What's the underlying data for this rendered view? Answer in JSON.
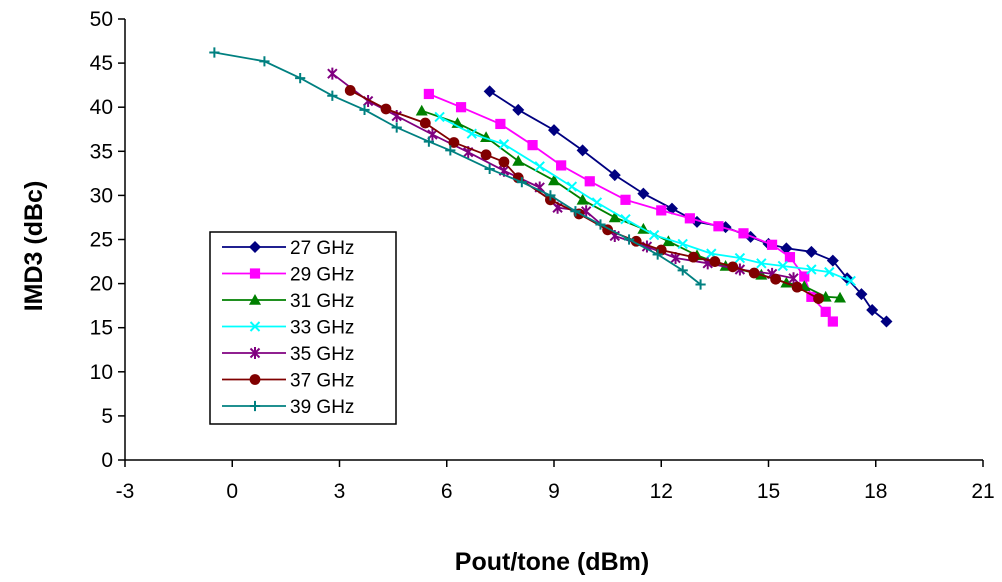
{
  "chart_data": {
    "type": "line",
    "xlabel": "Pout/tone (dBm)",
    "ylabel": "IMD3 (dBc)",
    "xlim": [
      -3,
      21
    ],
    "ylim": [
      0,
      50
    ],
    "xticks": [
      -3,
      0,
      3,
      6,
      9,
      12,
      15,
      18,
      21
    ],
    "yticks": [
      0,
      5,
      10,
      15,
      20,
      25,
      30,
      35,
      40,
      45,
      50
    ],
    "grid": false,
    "legend_position": "lower-left",
    "series": [
      {
        "name": "27 GHz",
        "color": "#000080",
        "marker": "diamond",
        "points": [
          [
            7.2,
            41.8
          ],
          [
            8.0,
            39.7
          ],
          [
            9.0,
            37.4
          ],
          [
            9.8,
            35.1
          ],
          [
            10.7,
            32.3
          ],
          [
            11.5,
            30.2
          ],
          [
            12.3,
            28.5
          ],
          [
            13.0,
            27.0
          ],
          [
            13.8,
            26.4
          ],
          [
            14.5,
            25.3
          ],
          [
            15.0,
            24.5
          ],
          [
            15.5,
            24.0
          ],
          [
            16.2,
            23.6
          ],
          [
            16.8,
            22.6
          ],
          [
            17.2,
            20.6
          ],
          [
            17.6,
            18.8
          ],
          [
            17.9,
            17.0
          ],
          [
            18.3,
            15.7
          ]
        ]
      },
      {
        "name": "29 GHz",
        "color": "#FF00FF",
        "marker": "square",
        "points": [
          [
            5.5,
            41.5
          ],
          [
            6.4,
            40.0
          ],
          [
            7.5,
            38.1
          ],
          [
            8.4,
            35.7
          ],
          [
            9.2,
            33.4
          ],
          [
            10.0,
            31.6
          ],
          [
            11.0,
            29.5
          ],
          [
            12.0,
            28.3
          ],
          [
            12.8,
            27.4
          ],
          [
            13.6,
            26.5
          ],
          [
            14.3,
            25.7
          ],
          [
            15.1,
            24.4
          ],
          [
            15.6,
            23.0
          ],
          [
            16.0,
            20.8
          ],
          [
            16.2,
            18.5
          ],
          [
            16.6,
            16.8
          ],
          [
            16.8,
            15.7
          ]
        ]
      },
      {
        "name": "31 GHz",
        "color": "#008000",
        "marker": "triangle",
        "points": [
          [
            5.3,
            39.6
          ],
          [
            6.3,
            38.2
          ],
          [
            7.1,
            36.6
          ],
          [
            8.0,
            33.9
          ],
          [
            9.0,
            31.7
          ],
          [
            9.8,
            29.5
          ],
          [
            10.7,
            27.5
          ],
          [
            11.5,
            26.2
          ],
          [
            12.2,
            24.8
          ],
          [
            13.0,
            23.2
          ],
          [
            13.8,
            22.0
          ],
          [
            14.8,
            21.0
          ],
          [
            15.5,
            20.1
          ],
          [
            16.0,
            19.7
          ],
          [
            16.6,
            18.5
          ],
          [
            17.0,
            18.4
          ]
        ]
      },
      {
        "name": "33 GHz",
        "color": "#00FFFF",
        "marker": "x",
        "points": [
          [
            5.8,
            38.9
          ],
          [
            6.7,
            37.0
          ],
          [
            7.6,
            35.8
          ],
          [
            8.6,
            33.3
          ],
          [
            9.5,
            31.0
          ],
          [
            10.2,
            29.2
          ],
          [
            11.0,
            27.3
          ],
          [
            11.8,
            25.5
          ],
          [
            12.6,
            24.5
          ],
          [
            13.4,
            23.4
          ],
          [
            14.2,
            22.9
          ],
          [
            14.8,
            22.3
          ],
          [
            15.4,
            22.0
          ],
          [
            16.2,
            21.6
          ],
          [
            16.7,
            21.3
          ],
          [
            17.3,
            20.3
          ]
        ]
      },
      {
        "name": "35 GHz",
        "color": "#800080",
        "marker": "asterisk",
        "points": [
          [
            2.8,
            43.8
          ],
          [
            3.8,
            40.7
          ],
          [
            4.6,
            39.0
          ],
          [
            5.6,
            36.9
          ],
          [
            6.6,
            34.9
          ],
          [
            7.6,
            32.8
          ],
          [
            8.6,
            30.9
          ],
          [
            9.1,
            28.6
          ],
          [
            9.9,
            28.2
          ],
          [
            10.7,
            25.4
          ],
          [
            11.6,
            24.2
          ],
          [
            12.4,
            22.9
          ],
          [
            13.3,
            22.3
          ],
          [
            14.2,
            21.6
          ],
          [
            15.1,
            21.1
          ],
          [
            15.7,
            20.6
          ]
        ]
      },
      {
        "name": "37 GHz",
        "color": "#800000",
        "marker": "circle",
        "points": [
          [
            3.3,
            41.9
          ],
          [
            4.3,
            39.8
          ],
          [
            5.4,
            38.2
          ],
          [
            6.2,
            36.0
          ],
          [
            7.1,
            34.6
          ],
          [
            7.6,
            33.8
          ],
          [
            8.0,
            32.0
          ],
          [
            8.9,
            29.5
          ],
          [
            9.7,
            27.9
          ],
          [
            10.5,
            26.1
          ],
          [
            11.3,
            24.8
          ],
          [
            12.0,
            23.8
          ],
          [
            12.9,
            23.0
          ],
          [
            13.5,
            22.5
          ],
          [
            14.0,
            21.9
          ],
          [
            14.6,
            21.2
          ],
          [
            15.2,
            20.5
          ],
          [
            15.8,
            19.6
          ],
          [
            16.4,
            18.3
          ]
        ]
      },
      {
        "name": "39 GHz",
        "color": "#008080",
        "marker": "plus",
        "points": [
          [
            -0.5,
            46.2
          ],
          [
            0.9,
            45.2
          ],
          [
            1.9,
            43.3
          ],
          [
            2.8,
            41.3
          ],
          [
            3.7,
            39.7
          ],
          [
            4.6,
            37.7
          ],
          [
            5.5,
            36.1
          ],
          [
            6.1,
            35.1
          ],
          [
            7.2,
            33.0
          ],
          [
            8.1,
            31.5
          ],
          [
            8.9,
            30.0
          ],
          [
            9.6,
            28.2
          ],
          [
            10.3,
            26.7
          ],
          [
            11.1,
            25.0
          ],
          [
            11.9,
            23.3
          ],
          [
            12.6,
            21.5
          ],
          [
            13.1,
            19.9
          ]
        ]
      }
    ]
  }
}
